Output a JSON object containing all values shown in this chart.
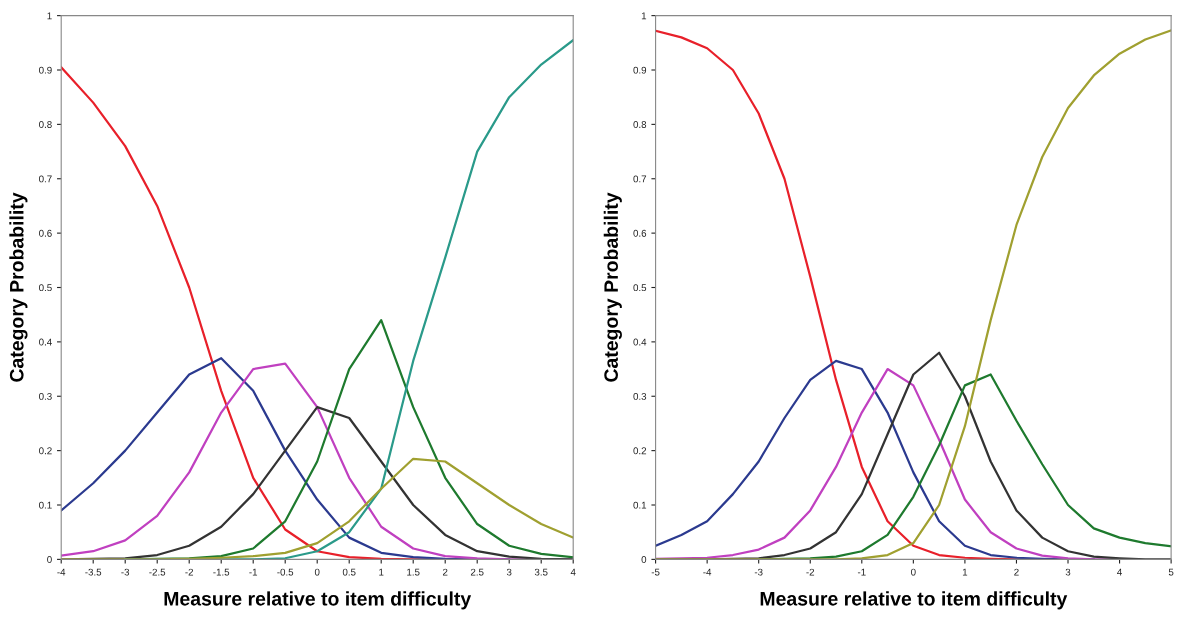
{
  "chart_data": [
    {
      "type": "line",
      "xlabel": "Measure relative to item difficulty",
      "ylabel": "Category Probability",
      "x": [
        -4,
        -3.5,
        -3,
        -2.5,
        -2,
        -1.5,
        -1,
        -0.5,
        0,
        0.5,
        1,
        1.5,
        2,
        2.5,
        3,
        3.5,
        4
      ],
      "series": [
        {
          "color": "#e8202a",
          "values": [
            0.905,
            0.84,
            0.76,
            0.65,
            0.5,
            0.31,
            0.15,
            0.055,
            0.015,
            0.004,
            0.001,
            0,
            0,
            null,
            null,
            null,
            null
          ]
        },
        {
          "color": "#2b3a8f",
          "values": [
            0.09,
            0.14,
            0.2,
            0.27,
            0.34,
            0.37,
            0.31,
            0.2,
            0.11,
            0.04,
            0.012,
            0.004,
            0.001,
            0,
            0,
            null,
            null
          ]
        },
        {
          "color": "#c040c0",
          "values": [
            0.007,
            0.015,
            0.035,
            0.08,
            0.16,
            0.27,
            0.35,
            0.36,
            0.28,
            0.15,
            0.06,
            0.02,
            0.006,
            0.002,
            0,
            0,
            0
          ]
        },
        {
          "color": "#333333",
          "values": [
            0,
            0.001,
            0.002,
            0.008,
            0.025,
            0.06,
            0.12,
            0.2,
            0.28,
            0.26,
            0.18,
            0.1,
            0.045,
            0.015,
            0.005,
            0.001,
            0
          ]
        },
        {
          "color": "#1e7a2e",
          "values": [
            null,
            null,
            0,
            0.001,
            0.002,
            0.006,
            0.02,
            0.07,
            0.18,
            0.35,
            0.44,
            0.28,
            0.15,
            0.065,
            0.025,
            0.01,
            0.004
          ]
        },
        {
          "color": "#2a9a8a",
          "values": [
            null,
            null,
            0,
            0,
            0,
            0,
            0,
            0.002,
            0.015,
            0.05,
            0.13,
            0.365,
            0.555,
            0.75,
            0.85,
            0.91,
            0.955
          ]
        },
        {
          "color": "#a0a030",
          "values": [
            0,
            0,
            0,
            0,
            0.001,
            0.003,
            0.006,
            0.012,
            0.03,
            0.07,
            0.13,
            0.185,
            0.18,
            0.14,
            0.1,
            0.065,
            0.04
          ]
        }
      ],
      "xlim": [
        -4,
        4
      ],
      "xticks": [
        -4,
        -3.5,
        -3,
        -2.5,
        -2,
        -1.5,
        -1,
        -0.5,
        0,
        0.5,
        1,
        1.5,
        2,
        2.5,
        3,
        3.5,
        4
      ],
      "ylim": [
        0,
        1
      ],
      "yticks": [
        0,
        0.1,
        0.2,
        0.3,
        0.4,
        0.5,
        0.6,
        0.7,
        0.8,
        0.9,
        1
      ],
      "grid": false,
      "marker": "none",
      "line_style": "solid"
    },
    {
      "type": "line",
      "xlabel": "Measure relative to item difficulty",
      "ylabel": "Category Probability",
      "x": [
        -5,
        -4.5,
        -4,
        -3.5,
        -3,
        -2.5,
        -2,
        -1.5,
        -1,
        -0.5,
        0,
        0.5,
        1,
        1.5,
        2,
        2.5,
        3,
        3.5,
        4,
        4.5,
        5
      ],
      "series": [
        {
          "color": "#e8202a",
          "values": [
            0.972,
            0.96,
            0.94,
            0.9,
            0.82,
            0.7,
            0.52,
            0.33,
            0.17,
            0.07,
            0.025,
            0.008,
            0.003,
            0.001,
            0,
            0,
            null,
            null,
            null,
            null,
            null
          ]
        },
        {
          "color": "#2b3a8f",
          "values": [
            0.025,
            0.045,
            0.07,
            0.12,
            0.18,
            0.26,
            0.33,
            0.365,
            0.35,
            0.27,
            0.16,
            0.07,
            0.025,
            0.008,
            0.003,
            0.001,
            0,
            0,
            null,
            null,
            null
          ]
        },
        {
          "color": "#c040c0",
          "values": [
            0.001,
            0.002,
            0.003,
            0.008,
            0.018,
            0.04,
            0.09,
            0.17,
            0.27,
            0.35,
            0.32,
            0.22,
            0.11,
            0.05,
            0.02,
            0.007,
            0.002,
            0,
            0,
            null,
            null
          ]
        },
        {
          "color": "#333333",
          "values": [
            0,
            0,
            0,
            0.001,
            0.002,
            0.008,
            0.02,
            0.05,
            0.12,
            0.23,
            0.34,
            0.38,
            0.3,
            0.18,
            0.09,
            0.04,
            0.015,
            0.005,
            0.002,
            0,
            0
          ]
        },
        {
          "color": "#1e7a2e",
          "values": [
            null,
            null,
            null,
            null,
            0,
            0.001,
            0.002,
            0.005,
            0.015,
            0.045,
            0.115,
            0.21,
            0.32,
            0.34,
            0.255,
            0.175,
            0.1,
            0.057,
            0.04,
            0.03,
            0.024
          ]
        },
        {
          "color": "#a0a030",
          "values": [
            0,
            0,
            0,
            0,
            0,
            0,
            0,
            0,
            0.002,
            0.008,
            0.03,
            0.1,
            0.245,
            0.44,
            0.615,
            0.74,
            0.83,
            0.89,
            0.93,
            0.956,
            0.973
          ]
        }
      ],
      "xlim": [
        -5,
        5
      ],
      "xticks": [
        -5,
        -4,
        -3,
        -2,
        -1,
        0,
        1,
        2,
        3,
        4,
        5
      ],
      "ylim": [
        0,
        1
      ],
      "yticks": [
        0,
        0.1,
        0.2,
        0.3,
        0.4,
        0.5,
        0.6,
        0.7,
        0.8,
        0.9,
        1
      ],
      "grid": false,
      "marker": "none",
      "line_style": "solid"
    }
  ]
}
